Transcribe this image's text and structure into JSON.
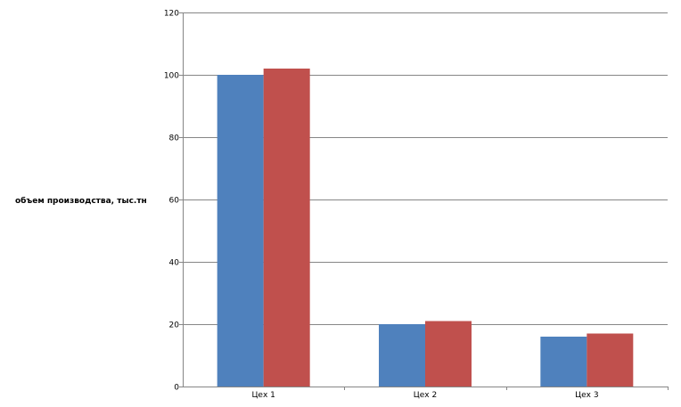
{
  "chart_data": {
    "type": "bar",
    "title": "",
    "xlabel": "",
    "ylabel": "объем производства, тыс.тн",
    "categories": [
      "Цех 1",
      "Цех 2",
      "Цех 3"
    ],
    "series": [
      {
        "values": [
          100,
          20,
          16
        ],
        "color": "#4f81bd"
      },
      {
        "values": [
          102,
          21,
          17
        ],
        "color": "#c0504d"
      }
    ],
    "ylim": [
      0,
      120
    ],
    "yticks": [
      0,
      20,
      40,
      60,
      80,
      100,
      120
    ],
    "grid": true,
    "legend": "none"
  }
}
